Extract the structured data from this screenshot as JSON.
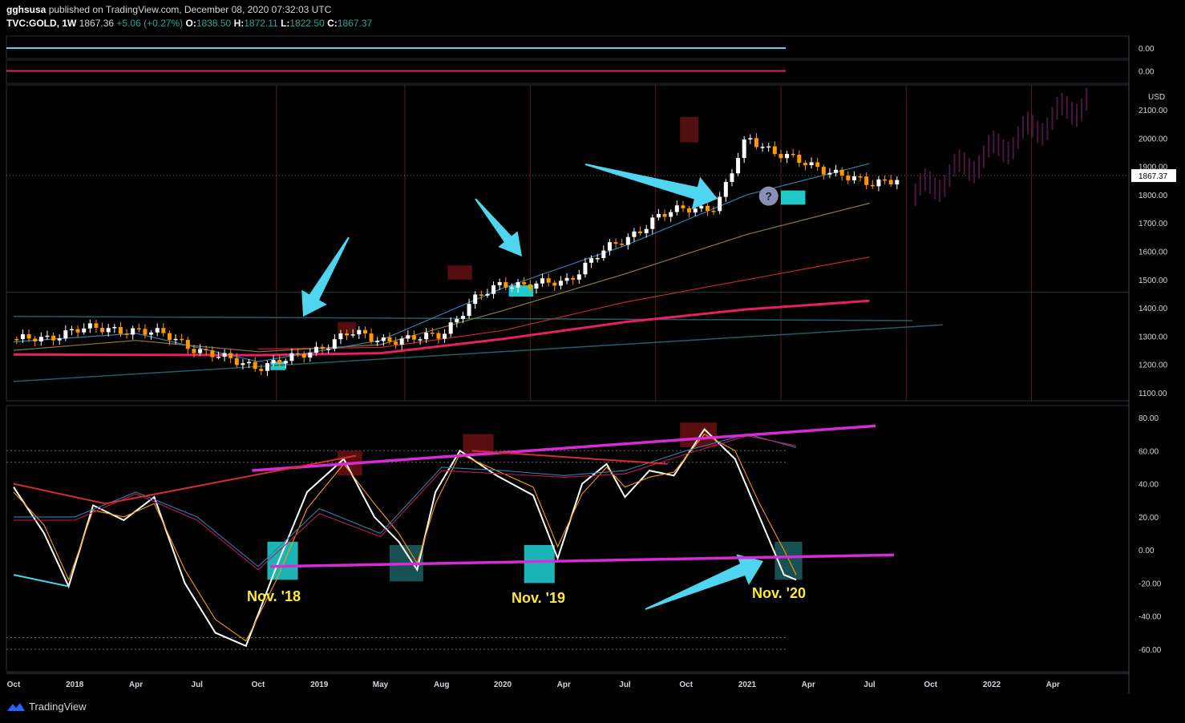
{
  "header": {
    "user": "gghsusa",
    "published_text": "published on TradingView.com, December 08, 2020 07:32:03 UTC",
    "symbol": "TVC:GOLD, 1W",
    "last": "1867.36",
    "change": "+5.06 (+0.27%)",
    "o_label": "O:",
    "o_val": "1838.50",
    "h_label": "H:",
    "h_val": "1872.11",
    "l_label": "L:",
    "l_val": "1822.50",
    "c_label": "C:",
    "c_val": "1867.37"
  },
  "footer": {
    "brand": "TradingView"
  },
  "colors": {
    "bg": "#000000",
    "up": "#ffffff",
    "down": "#ff9800",
    "aqua": "#4fd5f0",
    "teal": "#1fc9c9",
    "magenta": "#d62bd6",
    "pink": "#e91e63",
    "red": "#c62828",
    "yellow": "#ffe93b"
  },
  "chart_data": [
    {
      "type": "line",
      "panel": "indicator-1",
      "y_ticks": [
        "0.00"
      ],
      "series": []
    },
    {
      "type": "line",
      "panel": "indicator-2",
      "y_ticks": [
        "0.00"
      ],
      "series": []
    },
    {
      "type": "candlestick",
      "panel": "price",
      "currency": "USD",
      "last_price_label": "1867.37",
      "ylim": [
        1100,
        2150
      ],
      "y_ticks": [
        "2100.00",
        "2000.00",
        "1900.00",
        "1800.00",
        "1700.00",
        "1600.00",
        "1500.00",
        "1400.00",
        "1300.00",
        "1200.00",
        "1100.00"
      ],
      "x_ticks": [
        "Oct",
        "2018",
        "Apr",
        "Jul",
        "Oct",
        "2019",
        "May",
        "Aug",
        "2020",
        "Apr",
        "Jul",
        "Oct",
        "2021",
        "Apr",
        "Jul",
        "Oct",
        "2022",
        "Apr"
      ],
      "x_index": [
        0,
        1,
        2,
        3,
        4,
        5,
        6,
        7,
        8,
        9,
        10,
        11,
        12,
        13,
        14,
        15,
        16,
        17
      ],
      "close": [
        [
          0,
          1290
        ],
        [
          0.5,
          1285
        ],
        [
          1,
          1330
        ],
        [
          1.5,
          1320
        ],
        [
          2,
          1325
        ],
        [
          2.5,
          1300
        ],
        [
          3,
          1255
        ],
        [
          3.5,
          1215
        ],
        [
          4,
          1195
        ],
        [
          4.5,
          1215
        ],
        [
          5,
          1260
        ],
        [
          5.5,
          1310
        ],
        [
          6,
          1290
        ],
        [
          6.5,
          1285
        ],
        [
          7,
          1310
        ],
        [
          7.5,
          1420
        ],
        [
          8,
          1490
        ],
        [
          8.5,
          1480
        ],
        [
          9,
          1490
        ],
        [
          9.5,
          1580
        ],
        [
          10,
          1640
        ],
        [
          10.5,
          1720
        ],
        [
          11,
          1750
        ],
        [
          11.5,
          1760
        ],
        [
          12,
          2000
        ],
        [
          12.5,
          1950
        ],
        [
          13,
          1900
        ],
        [
          13.5,
          1880
        ],
        [
          14,
          1830
        ],
        [
          14.5,
          1867
        ]
      ],
      "projection": {
        "x_range": [
          14.75,
          17.6
        ],
        "y_range": [
          1800,
          2140
        ]
      },
      "ma_lines": [
        {
          "name": "",
          "color": "#e91e63",
          "points": [
            [
              0,
              1235
            ],
            [
              4,
              1233
            ],
            [
              6,
              1240
            ],
            [
              8,
              1290
            ],
            [
              10,
              1350
            ],
            [
              12,
              1395
            ],
            [
              14,
              1425
            ]
          ]
        },
        {
          "name": "",
          "color": "#c62828",
          "points": [
            [
              4,
              1255
            ],
            [
              6,
              1260
            ],
            [
              8,
              1320
            ],
            [
              10,
              1420
            ],
            [
              12,
              1500
            ],
            [
              14,
              1580
            ]
          ]
        },
        {
          "name": "",
          "color": "#8d7a3a",
          "points": [
            [
              0,
              1250
            ],
            [
              2,
              1285
            ],
            [
              4,
              1245
            ],
            [
              6,
              1270
            ],
            [
              8,
              1390
            ],
            [
              10,
              1520
            ],
            [
              12,
              1660
            ],
            [
              14,
              1770
            ]
          ]
        },
        {
          "name": "",
          "color": "#2f7fb0",
          "points": [
            [
              0,
              1280
            ],
            [
              2,
              1310
            ],
            [
              4,
              1210
            ],
            [
              6,
              1285
            ],
            [
              8,
              1470
            ],
            [
              10,
              1620
            ],
            [
              12,
              1800
            ],
            [
              14,
              1910
            ]
          ]
        }
      ],
      "trendlines": [
        {
          "color": "#1d5f66",
          "points": [
            [
              0,
              1140
            ],
            [
              15.2,
              1340
            ]
          ]
        },
        {
          "color": "#1d5f66",
          "points": [
            [
              0,
              1370
            ],
            [
              14.7,
              1355
            ]
          ]
        }
      ],
      "zones_red": [
        [
          5.3,
          1310,
          5.6,
          1350
        ],
        [
          7.1,
          1500,
          7.5,
          1550
        ],
        [
          10.9,
          1985,
          11.2,
          2075
        ]
      ],
      "zones_teal": [
        [
          4.2,
          1180,
          4.45,
          1210
        ],
        [
          8.1,
          1440,
          8.5,
          1480
        ],
        [
          12.55,
          1765,
          12.95,
          1815
        ]
      ],
      "question_marker": {
        "x": 12.35,
        "y": 1795,
        "text": "?"
      }
    },
    {
      "type": "line",
      "panel": "oscillator",
      "ylim": [
        -72,
        86
      ],
      "y_ticks": [
        "80.00",
        "60.00",
        "40.00",
        "20.00",
        "0.00",
        "-20.00",
        "-40.00",
        "-60.00"
      ],
      "series": [
        {
          "name": "",
          "color": "#ffffff",
          "values": [
            [
              0,
              38
            ],
            [
              0.5,
              10
            ],
            [
              0.9,
              -22
            ],
            [
              1.3,
              27
            ],
            [
              1.8,
              18
            ],
            [
              2.3,
              32
            ],
            [
              2.8,
              -20
            ],
            [
              3.3,
              -50
            ],
            [
              3.8,
              -58
            ],
            [
              4.3,
              -10
            ],
            [
              4.8,
              35
            ],
            [
              5.4,
              55
            ],
            [
              5.9,
              20
            ],
            [
              6.3,
              5
            ],
            [
              6.6,
              -12
            ],
            [
              6.9,
              35
            ],
            [
              7.3,
              60
            ],
            [
              7.9,
              45
            ],
            [
              8.5,
              33
            ],
            [
              8.9,
              -5
            ],
            [
              9.3,
              40
            ],
            [
              9.7,
              52
            ],
            [
              10.0,
              32
            ],
            [
              10.4,
              48
            ],
            [
              10.8,
              45
            ],
            [
              11.3,
              73
            ],
            [
              11.8,
              55
            ],
            [
              12.2,
              20
            ],
            [
              12.6,
              -15
            ],
            [
              12.8,
              -18
            ]
          ]
        },
        {
          "name": "",
          "color": "#ff9800",
          "values": [
            [
              0,
              35
            ],
            [
              0.5,
              15
            ],
            [
              0.9,
              -18
            ],
            [
              1.3,
              24
            ],
            [
              1.8,
              20
            ],
            [
              2.3,
              28
            ],
            [
              2.8,
              -12
            ],
            [
              3.3,
              -42
            ],
            [
              3.8,
              -55
            ],
            [
              4.3,
              -18
            ],
            [
              4.8,
              25
            ],
            [
              5.4,
              52
            ],
            [
              5.9,
              28
            ],
            [
              6.3,
              10
            ],
            [
              6.6,
              -8
            ],
            [
              6.9,
              28
            ],
            [
              7.3,
              58
            ],
            [
              7.9,
              48
            ],
            [
              8.5,
              38
            ],
            [
              8.9,
              2
            ],
            [
              9.3,
              34
            ],
            [
              9.7,
              50
            ],
            [
              10.0,
              38
            ],
            [
              10.4,
              44
            ],
            [
              10.8,
              47
            ],
            [
              11.3,
              70
            ],
            [
              11.8,
              60
            ],
            [
              12.2,
              28
            ],
            [
              12.6,
              0
            ],
            [
              12.8,
              -15
            ]
          ]
        },
        {
          "name": "",
          "color": "#2f7fb0",
          "values": [
            [
              0,
              20
            ],
            [
              1,
              20
            ],
            [
              2,
              35
            ],
            [
              3,
              20
            ],
            [
              4,
              -10
            ],
            [
              5,
              25
            ],
            [
              6,
              10
            ],
            [
              7,
              50
            ],
            [
              8,
              48
            ],
            [
              9,
              45
            ],
            [
              10,
              48
            ],
            [
              11,
              60
            ],
            [
              12,
              70
            ],
            [
              12.8,
              62
            ]
          ]
        },
        {
          "name": "",
          "color": "#c2185b",
          "values": [
            [
              0,
              18
            ],
            [
              1,
              18
            ],
            [
              2,
              34
            ],
            [
              3,
              18
            ],
            [
              4,
              -12
            ],
            [
              5,
              22
            ],
            [
              6,
              8
            ],
            [
              7,
              48
            ],
            [
              8,
              46
            ],
            [
              9,
              44
            ],
            [
              10,
              46
            ],
            [
              11,
              58
            ],
            [
              12,
              69
            ],
            [
              12.8,
              63
            ]
          ]
        }
      ],
      "trendlines": [
        {
          "color": "#d62bd6",
          "points": [
            [
              3.9,
              48
            ],
            [
              14.1,
              75
            ]
          ]
        },
        {
          "color": "#d62bd6",
          "points": [
            [
              4.2,
              -10
            ],
            [
              14.4,
              -3
            ]
          ]
        },
        {
          "color": "#d32f2f",
          "points": [
            [
              0,
              40
            ],
            [
              1.5,
              28
            ]
          ]
        },
        {
          "color": "#d32f2f",
          "points": [
            [
              1.5,
              28
            ],
            [
              5.6,
              57
            ]
          ]
        },
        {
          "color": "#d32f2f",
          "points": [
            [
              7.5,
              60
            ],
            [
              10.7,
              52
            ]
          ]
        },
        {
          "color": "#4fd5f0",
          "points": [
            [
              0,
              -15
            ],
            [
              0.9,
              -22
            ]
          ]
        }
      ],
      "reference_levels": [
        60,
        53,
        -53,
        -60
      ],
      "zones_teal": [
        [
          4.15,
          -18,
          4.65,
          5
        ],
        [
          6.15,
          -19,
          6.7,
          3
        ],
        [
          8.35,
          -20,
          8.85,
          3
        ],
        [
          12.45,
          -18,
          12.9,
          5
        ]
      ],
      "zones_red": [
        [
          5.3,
          45,
          5.7,
          60
        ],
        [
          7.35,
          57,
          7.85,
          70
        ],
        [
          10.9,
          62,
          11.5,
          77
        ]
      ],
      "annotations": [
        "Nov. '18",
        "Nov. '19",
        "Nov. '20"
      ]
    }
  ]
}
